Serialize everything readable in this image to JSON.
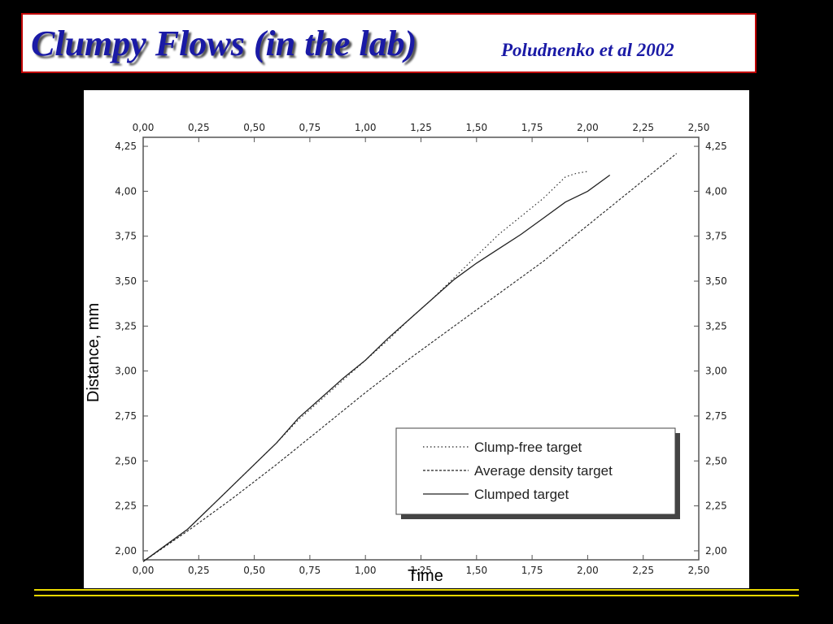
{
  "slide": {
    "title": "Clumpy Flows (in the lab)",
    "subtitle": "Poludnenko et al 2002",
    "accent_color": "#1a1aa6",
    "border_color": "#c00000",
    "rule_color": "#e8d800"
  },
  "chart_data": {
    "type": "line",
    "xlabel": "Time",
    "ylabel": "Distance, mm",
    "xlim": [
      0,
      2.5
    ],
    "ylim": [
      1.95,
      4.3
    ],
    "x_ticks": [
      "0,00",
      "0,25",
      "0,50",
      "0,75",
      "1,00",
      "1,25",
      "1,50",
      "1,75",
      "2,00",
      "2,25",
      "2,50"
    ],
    "y_ticks": [
      "2,00",
      "2,25",
      "2,50",
      "2,75",
      "3,00",
      "3,25",
      "3,50",
      "3,75",
      "4,00",
      "4,25"
    ],
    "legend_position": "bottom-right",
    "series": [
      {
        "name": "Clump-free target",
        "style": "dotted",
        "x": [
          0,
          0.1,
          0.2,
          0.3,
          0.4,
          0.5,
          0.6,
          0.7,
          0.8,
          0.9,
          1.0,
          1.1,
          1.2,
          1.3,
          1.4,
          1.5,
          1.6,
          1.7,
          1.8,
          1.9,
          1.95,
          2.0
        ],
        "y": [
          1.94,
          2.03,
          2.12,
          2.24,
          2.36,
          2.48,
          2.6,
          2.73,
          2.84,
          2.95,
          3.06,
          3.17,
          3.29,
          3.4,
          3.52,
          3.64,
          3.76,
          3.86,
          3.96,
          4.08,
          4.1,
          4.11
        ]
      },
      {
        "name": "Average density target",
        "style": "dashed",
        "x": [
          0,
          0.2,
          0.4,
          0.6,
          0.8,
          1.0,
          1.2,
          1.4,
          1.6,
          1.8,
          2.0,
          2.2,
          2.4
        ],
        "y": [
          1.94,
          2.11,
          2.29,
          2.48,
          2.68,
          2.88,
          3.07,
          3.25,
          3.43,
          3.61,
          3.81,
          4.01,
          4.21
        ]
      },
      {
        "name": "Clumped target",
        "style": "solid",
        "x": [
          0,
          0.1,
          0.2,
          0.3,
          0.4,
          0.5,
          0.6,
          0.7,
          0.8,
          0.9,
          1.0,
          1.1,
          1.2,
          1.3,
          1.4,
          1.5,
          1.6,
          1.7,
          1.8,
          1.9,
          2.0,
          2.1
        ],
        "y": [
          1.94,
          2.03,
          2.12,
          2.24,
          2.36,
          2.48,
          2.6,
          2.74,
          2.85,
          2.96,
          3.06,
          3.18,
          3.29,
          3.4,
          3.51,
          3.6,
          3.68,
          3.76,
          3.85,
          3.94,
          4.0,
          4.09
        ]
      }
    ]
  }
}
